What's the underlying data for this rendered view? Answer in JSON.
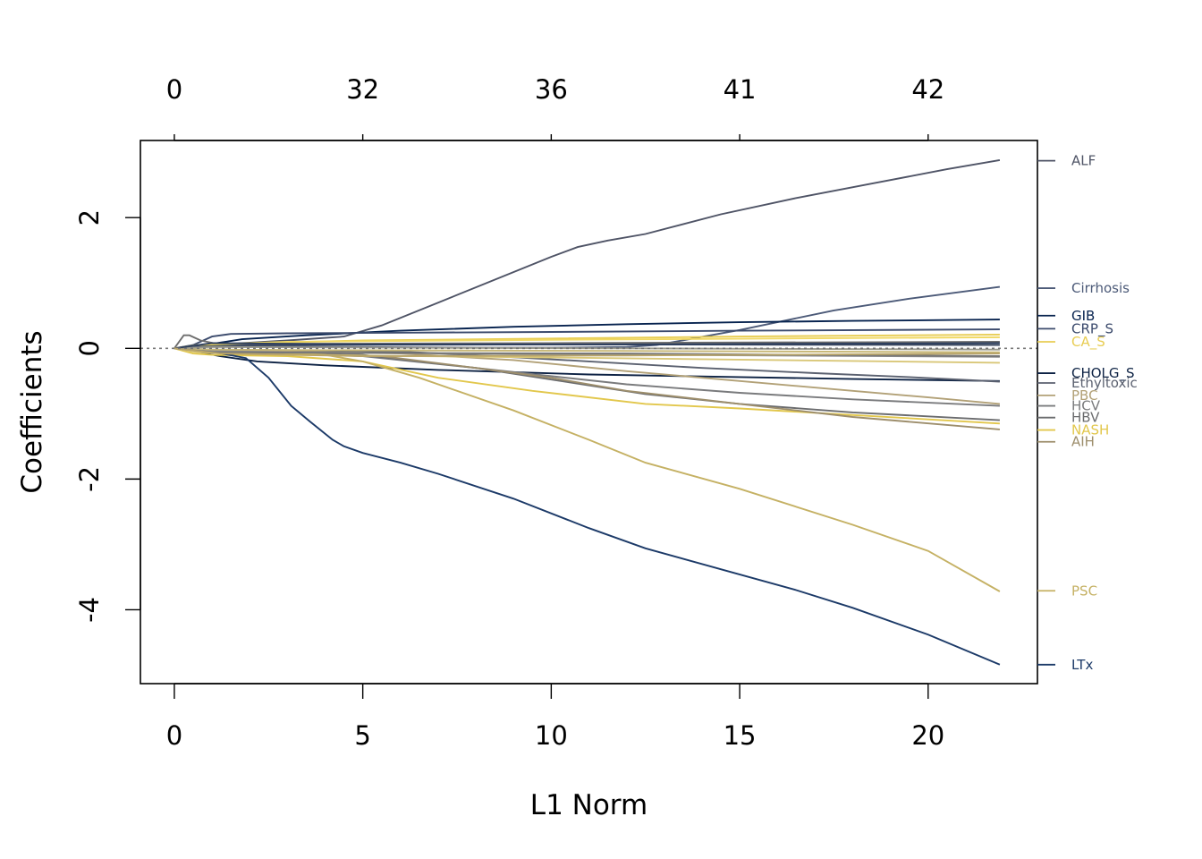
{
  "chart_data": {
    "type": "line",
    "xlabel": "L1 Norm",
    "ylabel": "Coefficients",
    "xlim": [
      -0.9,
      22.9
    ],
    "ylim": [
      -5.13,
      3.18
    ],
    "x_ticks": [
      0,
      5,
      10,
      15,
      20
    ],
    "y_ticks": [
      -4,
      -2,
      0,
      2
    ],
    "top_ticks": [
      {
        "at": 0,
        "label": "0"
      },
      {
        "at": 5,
        "label": "32"
      },
      {
        "at": 10,
        "label": "36"
      },
      {
        "at": 15,
        "label": "41"
      },
      {
        "at": 20,
        "label": "42"
      }
    ],
    "zero_line": true,
    "series": [
      {
        "name": "ALF",
        "color": "#4f5466",
        "label_y": 2.87,
        "points": [
          [
            0,
            0
          ],
          [
            0.5,
            0.03
          ],
          [
            1.5,
            0.07
          ],
          [
            3,
            0.12
          ],
          [
            4.5,
            0.18
          ],
          [
            5.5,
            0.35
          ],
          [
            7,
            0.7
          ],
          [
            8.5,
            1.05
          ],
          [
            10,
            1.4
          ],
          [
            10.7,
            1.55
          ],
          [
            11.5,
            1.65
          ],
          [
            12.5,
            1.75
          ],
          [
            14.5,
            2.05
          ],
          [
            16.5,
            2.3
          ],
          [
            18.5,
            2.52
          ],
          [
            20.5,
            2.74
          ],
          [
            21.9,
            2.88
          ]
        ]
      },
      {
        "name": "Cirrhosis",
        "color": "#4c5a78",
        "label_y": 0.92,
        "points": [
          [
            0,
            0
          ],
          [
            0.6,
            0.02
          ],
          [
            2,
            0.03
          ],
          [
            5,
            0.02
          ],
          [
            8,
            0.01
          ],
          [
            10,
            0.01
          ],
          [
            12,
            0.02
          ],
          [
            12.8,
            0.05
          ],
          [
            15,
            0.28
          ],
          [
            17.5,
            0.58
          ],
          [
            19.5,
            0.76
          ],
          [
            21.9,
            0.94
          ]
        ]
      },
      {
        "name": "GIB",
        "color": "#07234f",
        "label_y": 0.5,
        "points": [
          [
            0,
            0
          ],
          [
            0.8,
            0.05
          ],
          [
            1.8,
            0.14
          ],
          [
            3.5,
            0.2
          ],
          [
            6,
            0.27
          ],
          [
            9,
            0.33
          ],
          [
            12,
            0.37
          ],
          [
            15,
            0.4
          ],
          [
            18,
            0.42
          ],
          [
            21.9,
            0.44
          ]
        ]
      },
      {
        "name": "CRP_S",
        "color": "#3c4b6d",
        "label_y": 0.3,
        "points": [
          [
            0,
            0
          ],
          [
            0.5,
            0.05
          ],
          [
            1,
            0.18
          ],
          [
            1.5,
            0.22
          ],
          [
            3,
            0.23
          ],
          [
            6,
            0.24
          ],
          [
            10,
            0.25
          ],
          [
            15,
            0.27
          ],
          [
            21.9,
            0.29
          ]
        ]
      },
      {
        "name": "CA_S",
        "color": "#e8cd54",
        "label_y": 0.1,
        "points": [
          [
            0,
            0
          ],
          [
            0.7,
            0.03
          ],
          [
            2,
            0.08
          ],
          [
            5,
            0.12
          ],
          [
            10,
            0.15
          ],
          [
            15,
            0.18
          ],
          [
            21.9,
            0.21
          ]
        ]
      },
      {
        "name": "CHOLG_S",
        "color": "#0d2244",
        "label_y": -0.38,
        "points": [
          [
            0,
            0
          ],
          [
            0.6,
            -0.05
          ],
          [
            1.2,
            -0.12
          ],
          [
            2.2,
            -0.2
          ],
          [
            4,
            -0.26
          ],
          [
            7,
            -0.33
          ],
          [
            11,
            -0.4
          ],
          [
            15,
            -0.44
          ],
          [
            18,
            -0.47
          ],
          [
            21.9,
            -0.5
          ]
        ]
      },
      {
        "name": "Ethyltoxic",
        "color": "#5b6170",
        "label_y": -0.53,
        "points": [
          [
            0,
            0
          ],
          [
            1,
            -0.02
          ],
          [
            3,
            -0.03
          ],
          [
            6,
            -0.05
          ],
          [
            8.5,
            -0.12
          ],
          [
            11,
            -0.2
          ],
          [
            14,
            -0.3
          ],
          [
            17,
            -0.38
          ],
          [
            19.5,
            -0.44
          ],
          [
            21.9,
            -0.51
          ]
        ]
      },
      {
        "name": "PBC",
        "color": "#b2a177",
        "label_y": -0.72,
        "points": [
          [
            0,
            0
          ],
          [
            1,
            -0.03
          ],
          [
            3,
            -0.05
          ],
          [
            6,
            -0.08
          ],
          [
            9,
            -0.18
          ],
          [
            12,
            -0.35
          ],
          [
            15,
            -0.5
          ],
          [
            18,
            -0.65
          ],
          [
            20,
            -0.75
          ],
          [
            21.9,
            -0.85
          ]
        ]
      },
      {
        "name": "HCV",
        "color": "#7a7b7d",
        "label_y": -0.88,
        "points": [
          [
            0,
            0
          ],
          [
            1,
            -0.05
          ],
          [
            3,
            -0.08
          ],
          [
            5,
            -0.12
          ],
          [
            8,
            -0.3
          ],
          [
            12,
            -0.55
          ],
          [
            15,
            -0.68
          ],
          [
            18,
            -0.78
          ],
          [
            21.9,
            -0.88
          ]
        ]
      },
      {
        "name": "HBV",
        "color": "#6b6c6e",
        "label_y": -1.06,
        "points": [
          [
            0,
            0
          ],
          [
            1,
            -0.04
          ],
          [
            3,
            -0.07
          ],
          [
            5,
            -0.1
          ],
          [
            8,
            -0.3
          ],
          [
            12.5,
            -0.7
          ],
          [
            15,
            -0.85
          ],
          [
            18,
            -0.98
          ],
          [
            21.9,
            -1.1
          ]
        ]
      },
      {
        "name": "NASH",
        "color": "#e2c74c",
        "label_y": -1.25,
        "points": [
          [
            0,
            0
          ],
          [
            0.5,
            -0.08
          ],
          [
            1,
            -0.1
          ],
          [
            3,
            -0.12
          ],
          [
            5,
            -0.2
          ],
          [
            7,
            -0.45
          ],
          [
            9.5,
            -0.65
          ],
          [
            12.5,
            -0.85
          ],
          [
            15,
            -0.92
          ],
          [
            18,
            -1.02
          ],
          [
            21.9,
            -1.15
          ]
        ]
      },
      {
        "name": "AIH",
        "color": "#9d8e6c",
        "label_y": -1.43,
        "points": [
          [
            0,
            0
          ],
          [
            1,
            -0.05
          ],
          [
            3,
            -0.08
          ],
          [
            5.5,
            -0.12
          ],
          [
            8,
            -0.3
          ],
          [
            10,
            -0.45
          ],
          [
            12,
            -0.65
          ],
          [
            15,
            -0.85
          ],
          [
            18,
            -1.05
          ],
          [
            21.9,
            -1.24
          ]
        ]
      },
      {
        "name": "PSC",
        "color": "#c5b164",
        "label_y": -3.71,
        "points": [
          [
            0,
            0
          ],
          [
            0.8,
            -0.03
          ],
          [
            2.5,
            -0.06
          ],
          [
            4,
            -0.1
          ],
          [
            5,
            -0.2
          ],
          [
            6.5,
            -0.45
          ],
          [
            9,
            -0.95
          ],
          [
            11,
            -1.4
          ],
          [
            12.5,
            -1.75
          ],
          [
            15,
            -2.15
          ],
          [
            18,
            -2.7
          ],
          [
            20,
            -3.1
          ],
          [
            21.9,
            -3.72
          ]
        ]
      },
      {
        "name": "LTx",
        "color": "#1c3a68",
        "label_y": -4.84,
        "points": [
          [
            0,
            0
          ],
          [
            1,
            -0.05
          ],
          [
            1.9,
            -0.15
          ],
          [
            2.5,
            -0.45
          ],
          [
            3.1,
            -0.88
          ],
          [
            3.6,
            -1.12
          ],
          [
            4.2,
            -1.4
          ],
          [
            4.5,
            -1.5
          ],
          [
            5,
            -1.6
          ],
          [
            6,
            -1.75
          ],
          [
            7,
            -1.92
          ],
          [
            9,
            -2.3
          ],
          [
            11,
            -2.75
          ],
          [
            12.5,
            -3.06
          ],
          [
            14.5,
            -3.38
          ],
          [
            16.5,
            -3.7
          ],
          [
            18,
            -3.97
          ],
          [
            20,
            -4.38
          ],
          [
            21.9,
            -4.84
          ]
        ]
      },
      {
        "color": "#6e6e6e",
        "points": [
          [
            0,
            0
          ],
          [
            0.25,
            0.2
          ],
          [
            0.4,
            0.2
          ],
          [
            0.7,
            0.12
          ],
          [
            1.2,
            0.06
          ],
          [
            3,
            0.07
          ],
          [
            10,
            0.08
          ],
          [
            21.9,
            0.1
          ]
        ]
      },
      {
        "color": "#d9c778",
        "points": [
          [
            0,
            0
          ],
          [
            0.6,
            -0.06
          ],
          [
            3,
            -0.1
          ],
          [
            10,
            -0.14
          ],
          [
            21.9,
            -0.22
          ]
        ]
      },
      {
        "color": "#8a8a8a",
        "points": [
          [
            0,
            0
          ],
          [
            0.8,
            -0.04
          ],
          [
            3,
            -0.06
          ],
          [
            10,
            -0.09
          ],
          [
            21.9,
            -0.13
          ]
        ]
      },
      {
        "color": "#3d4a62",
        "points": [
          [
            0,
            0
          ],
          [
            0.9,
            0.04
          ],
          [
            3,
            0.05
          ],
          [
            10,
            0.06
          ],
          [
            21.9,
            0.05
          ]
        ]
      },
      {
        "color": "#c8b877",
        "points": [
          [
            0,
            0
          ],
          [
            1,
            -0.02
          ],
          [
            5,
            -0.03
          ],
          [
            12,
            -0.04
          ],
          [
            21.9,
            -0.06
          ]
        ]
      },
      {
        "color": "#9a9a8e",
        "points": [
          [
            0,
            0
          ],
          [
            1,
            0.02
          ],
          [
            6,
            0.01
          ],
          [
            12,
            0.0
          ],
          [
            21.9,
            -0.02
          ]
        ]
      },
      {
        "color": "#f0d862",
        "points": [
          [
            0,
            0
          ],
          [
            0.6,
            0.05
          ],
          [
            3,
            0.1
          ],
          [
            10,
            0.13
          ],
          [
            21.9,
            0.17
          ]
        ]
      },
      {
        "color": "#2c3e5e",
        "points": [
          [
            0,
            0
          ],
          [
            1,
            0.08
          ],
          [
            5,
            0.06
          ],
          [
            12,
            0.06
          ],
          [
            21.9,
            0.08
          ]
        ]
      },
      {
        "color": "#777777",
        "points": [
          [
            0,
            0
          ],
          [
            1,
            -0.06
          ],
          [
            5,
            -0.07
          ],
          [
            12,
            -0.08
          ],
          [
            21.9,
            -0.12
          ]
        ]
      },
      {
        "color": "#b9a56a",
        "points": [
          [
            0,
            0
          ],
          [
            1.2,
            -0.08
          ],
          [
            5,
            -0.12
          ],
          [
            12,
            -0.11
          ],
          [
            21.9,
            -0.08
          ]
        ]
      }
    ]
  }
}
